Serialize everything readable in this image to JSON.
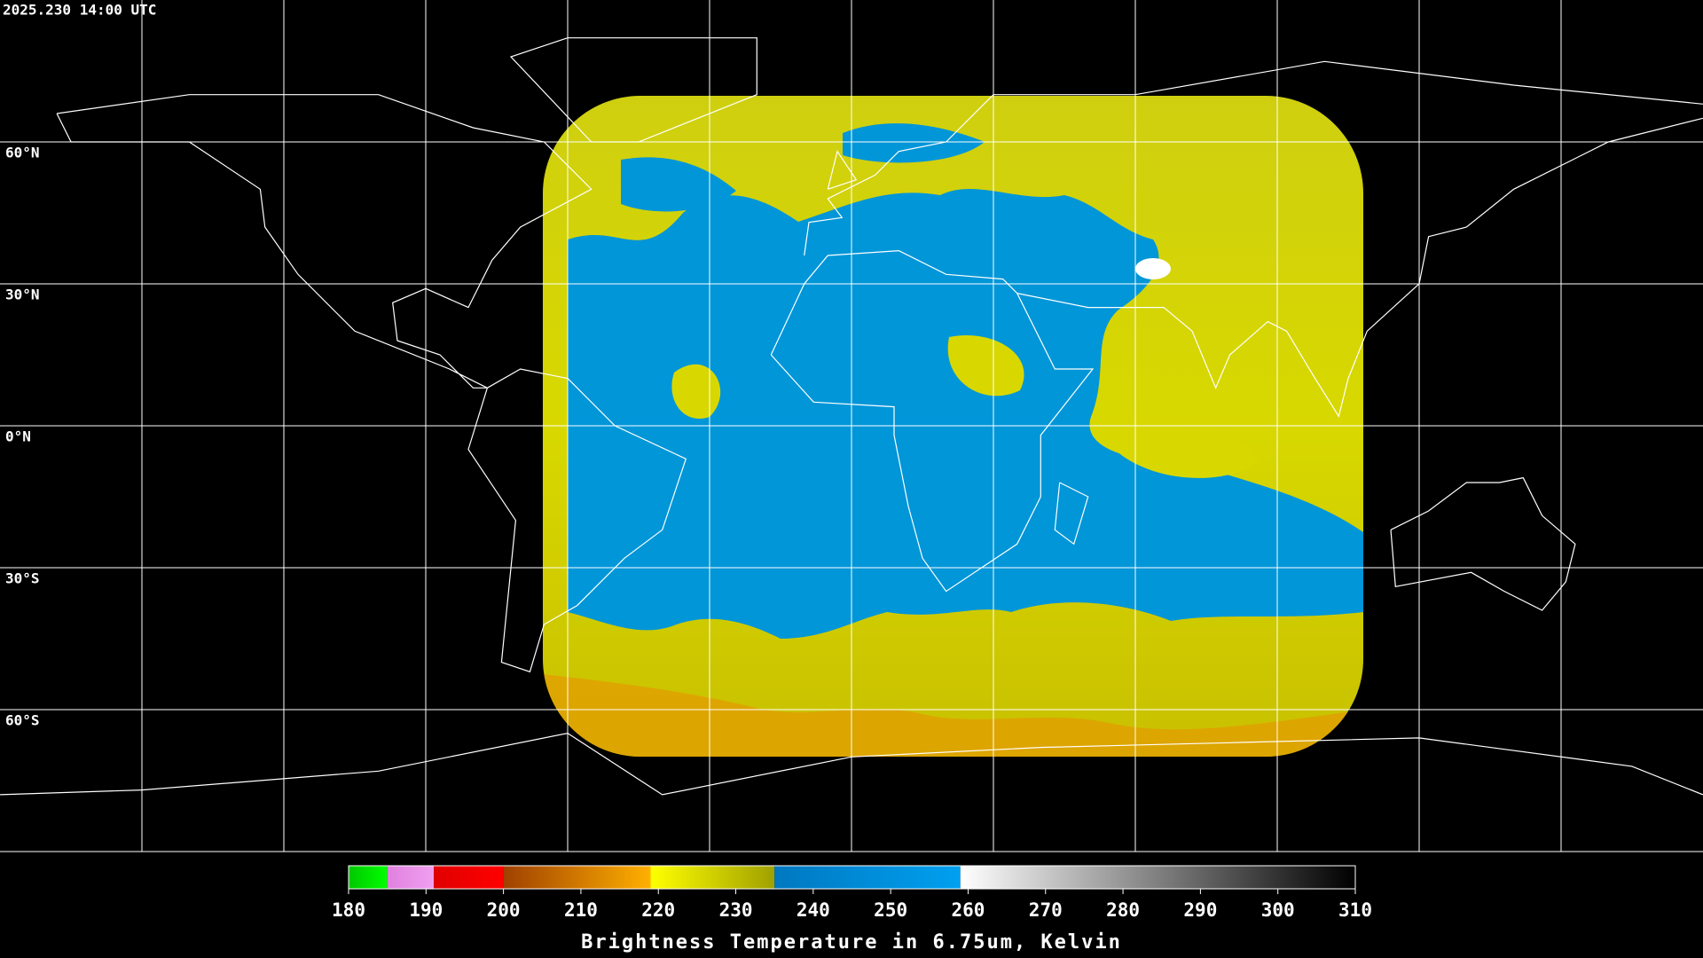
{
  "header": {
    "timestamp": "2025.230 14:00 UTC"
  },
  "map": {
    "lat_labels": [
      "60°N",
      "30°N",
      "0°N",
      "30°S",
      "60°S"
    ]
  },
  "colorbar": {
    "label": "Brightness Temperature in 6.75um, Kelvin",
    "xlim": [
      180,
      310
    ],
    "ticks": [
      180,
      190,
      200,
      210,
      220,
      230,
      240,
      250,
      260,
      270,
      280,
      290,
      300,
      310
    ],
    "segments": [
      {
        "from": 180,
        "to": 185,
        "colors": [
          "#00c800",
          "#00ff00"
        ]
      },
      {
        "from": 185,
        "to": 191,
        "colors": [
          "#e080e0",
          "#f0a0f0"
        ]
      },
      {
        "from": 191,
        "to": 200,
        "colors": [
          "#e00000",
          "#ff0000"
        ]
      },
      {
        "from": 200,
        "to": 219,
        "colors": [
          "#a04000",
          "#ffb000"
        ]
      },
      {
        "from": 219,
        "to": 235,
        "colors": [
          "#ffff00",
          "#a0a000"
        ]
      },
      {
        "from": 235,
        "to": 259,
        "colors": [
          "#0078c0",
          "#00a0f0"
        ]
      },
      {
        "from": 259,
        "to": 310,
        "colors": [
          "#ffffff",
          "#000000"
        ]
      }
    ]
  }
}
